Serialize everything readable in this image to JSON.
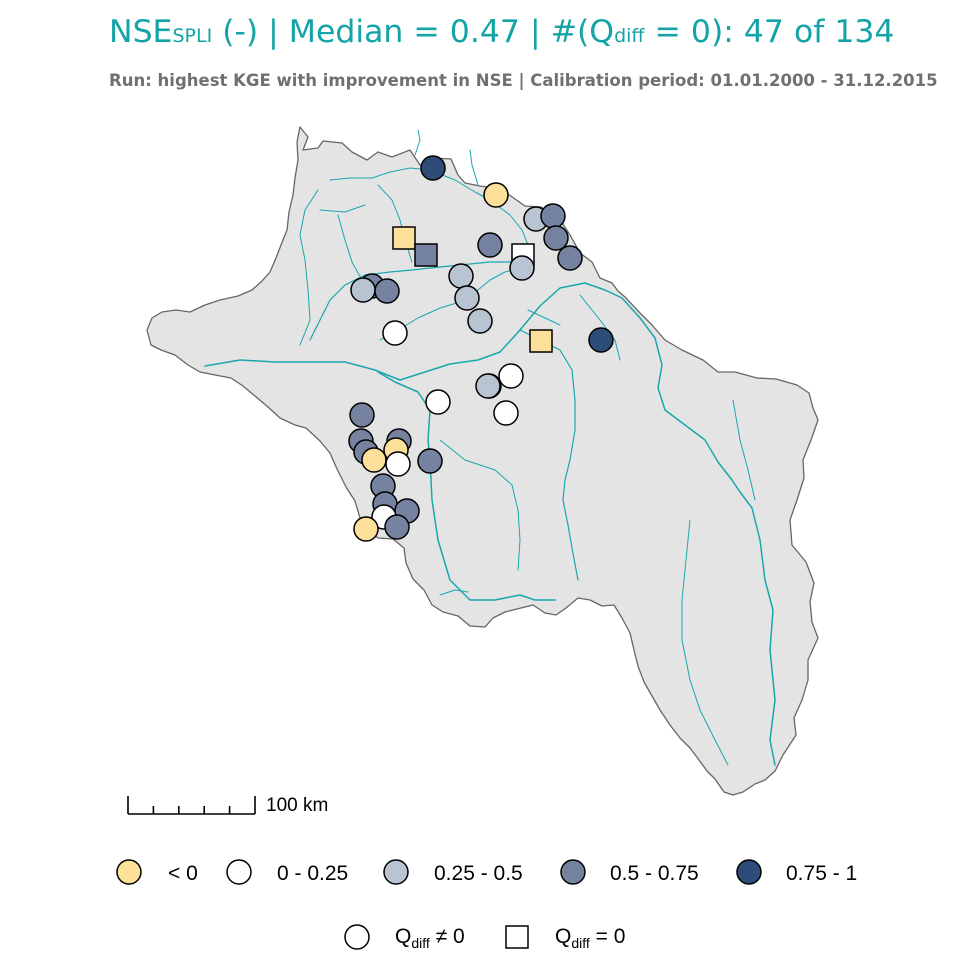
{
  "title": {
    "metric_main": "NSE",
    "metric_sub": "SPLI",
    "unit": "(-)",
    "median_label": "Median = 0.47",
    "count_prefix": "#(Q",
    "count_sub": "diff",
    "count_cond": " =  0)",
    "count_value": ": 47 of 134"
  },
  "subtitle": "Run: highest KGE with improvement in NSE | Calibration period: 01.01.2000 - 31.12.2015",
  "scale_bar": {
    "label": "100 km"
  },
  "colors": {
    "title": "#14A3A6",
    "basin_fill": "#E4E4E4",
    "basin_border": "#666666",
    "rivers": "#19A7AE",
    "class_lt0": "#FDE09A",
    "class_0_025": "#FFFFFF",
    "class_025_05": "#B9C4D3",
    "class_05_075": "#7583A0",
    "class_075_1": "#2E4C78"
  },
  "legend_classes": [
    {
      "label": "< 0",
      "color": "#FDE09A"
    },
    {
      "label": "0 - 0.25",
      "color": "#FFFFFF"
    },
    {
      "label": "0.25 - 0.5",
      "color": "#B9C4D3"
    },
    {
      "label": "0.5 - 0.75",
      "color": "#7583A0"
    },
    {
      "label": "0.75 - 1",
      "color": "#2E4C78"
    }
  ],
  "legend_shapes": [
    {
      "shape": "circle",
      "label_main": "Q",
      "label_sub": "diff",
      "label_rest": " ≠ 0"
    },
    {
      "shape": "square",
      "label_main": "Q",
      "label_sub": "diff",
      "label_rest": " = 0"
    }
  ],
  "gauges": [
    {
      "cls": 4,
      "shape": "circle"
    },
    {
      "cls": 0,
      "shape": "circle"
    },
    {
      "cls": 2,
      "shape": "circle"
    },
    {
      "cls": 3,
      "shape": "circle"
    },
    {
      "cls": 0,
      "shape": "square"
    },
    {
      "cls": 3,
      "shape": "square"
    },
    {
      "cls": 3,
      "shape": "circle"
    },
    {
      "cls": 1,
      "shape": "square"
    },
    {
      "cls": 3,
      "shape": "circle"
    },
    {
      "cls": 2,
      "shape": "circle"
    },
    {
      "cls": 3,
      "shape": "circle"
    },
    {
      "cls": 3,
      "shape": "circle"
    },
    {
      "cls": 2,
      "shape": "circle"
    },
    {
      "cls": 2,
      "shape": "circle"
    },
    {
      "cls": 3,
      "shape": "circle"
    },
    {
      "cls": 2,
      "shape": "circle"
    },
    {
      "cls": 2,
      "shape": "circle"
    },
    {
      "cls": 2,
      "shape": "circle"
    },
    {
      "cls": 1,
      "shape": "circle"
    },
    {
      "cls": 0,
      "shape": "square"
    },
    {
      "cls": 4,
      "shape": "circle"
    },
    {
      "cls": 1,
      "shape": "circle"
    },
    {
      "cls": 2,
      "shape": "circle"
    },
    {
      "cls": 1,
      "shape": "circle"
    },
    {
      "cls": 1,
      "shape": "circle"
    },
    {
      "cls": 3,
      "shape": "circle"
    },
    {
      "cls": 3,
      "shape": "circle"
    },
    {
      "cls": 3,
      "shape": "circle"
    },
    {
      "cls": 3,
      "shape": "circle"
    },
    {
      "cls": 0,
      "shape": "circle"
    },
    {
      "cls": 0,
      "shape": "circle"
    },
    {
      "cls": 1,
      "shape": "circle"
    },
    {
      "cls": 3,
      "shape": "circle"
    },
    {
      "cls": 3,
      "shape": "circle"
    },
    {
      "cls": 3,
      "shape": "circle"
    },
    {
      "cls": 3,
      "shape": "circle"
    },
    {
      "cls": 1,
      "shape": "circle"
    },
    {
      "cls": 3,
      "shape": "circle"
    },
    {
      "cls": 0,
      "shape": "circle"
    }
  ]
}
